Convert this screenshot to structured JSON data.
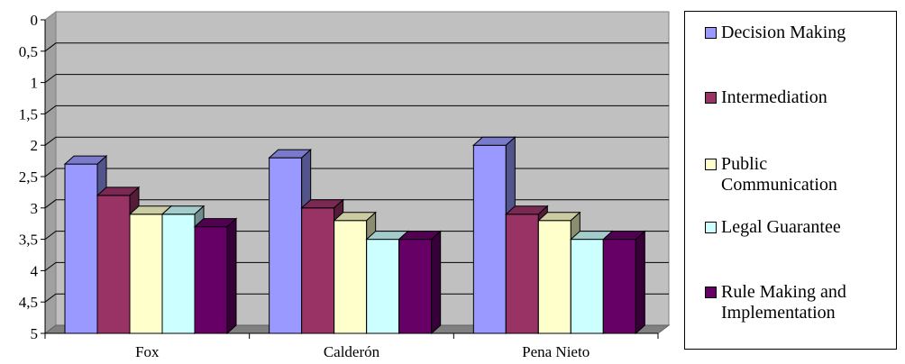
{
  "chart_data": {
    "type": "bar",
    "categories": [
      "Fox",
      "Calderón",
      "Pena Nieto"
    ],
    "series": [
      {
        "name": "Decision Making",
        "color": "#9999ff",
        "values": [
          2.3,
          2.2,
          2.0
        ]
      },
      {
        "name": "Intermediation",
        "color": "#993366",
        "values": [
          2.8,
          3.0,
          3.1
        ]
      },
      {
        "name": "Public Communication",
        "color": "#ffffcc",
        "values": [
          3.1,
          3.2,
          3.2
        ]
      },
      {
        "name": "Legal Guarantee",
        "color": "#ccffff",
        "values": [
          3.1,
          3.5,
          3.5
        ]
      },
      {
        "name": "Rule Making and Implementation",
        "color": "#660066",
        "values": [
          3.3,
          3.5,
          3.5
        ]
      }
    ],
    "y_ticks": [
      "0",
      "0,5",
      "1",
      "1,5",
      "2",
      "2,5",
      "3",
      "3,5",
      "4",
      "4,5",
      "5"
    ],
    "ylim": [
      0,
      5
    ],
    "y_inverted": true,
    "grid": true,
    "plot_background": "#c0c0c0",
    "legend_position": "right",
    "legend_labels": [
      "Decision Making",
      "Intermediation",
      "Public\nCommunication",
      "Legal Guarantee",
      "Rule Making and\nImplementation"
    ]
  }
}
